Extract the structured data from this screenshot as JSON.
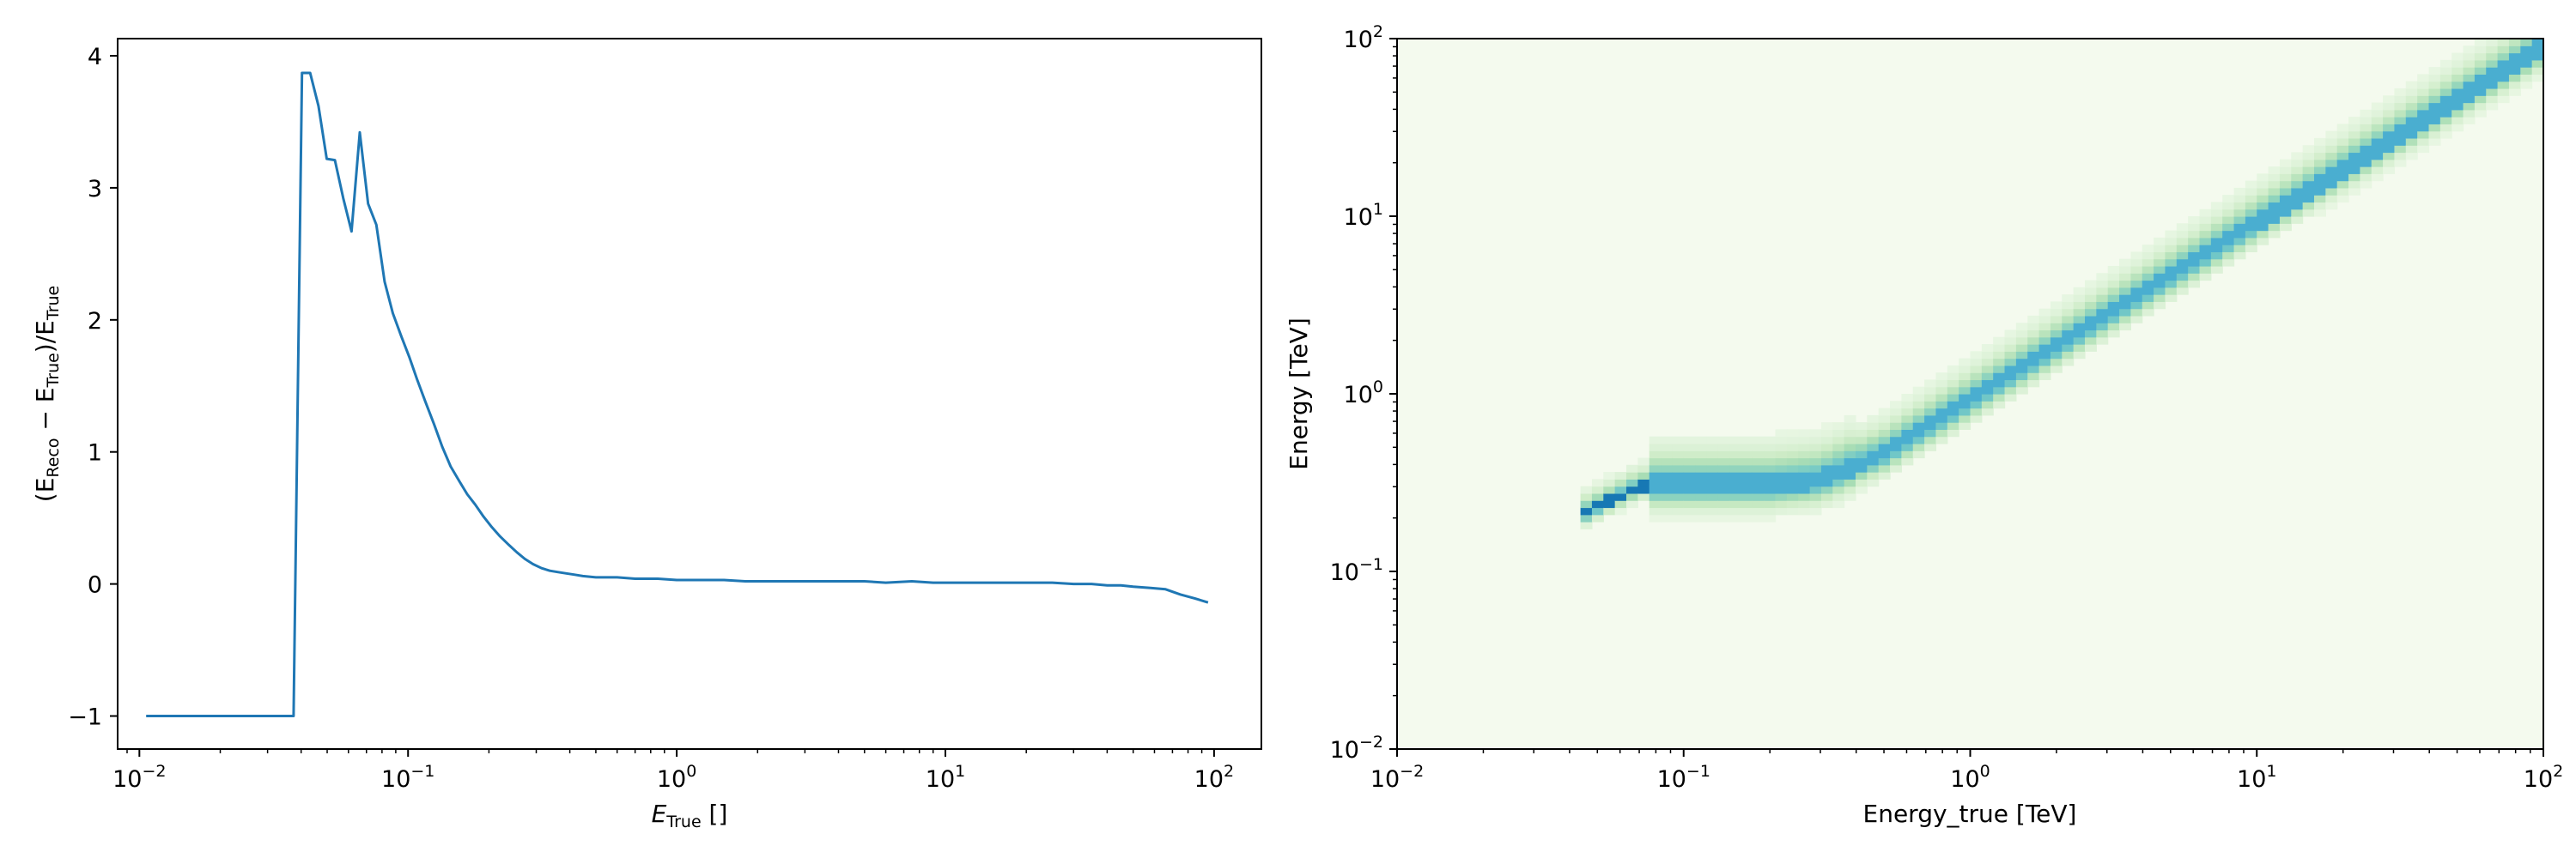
{
  "chart_data": [
    {
      "type": "line",
      "xscale": "log",
      "xlim": [
        0.0083,
        150
      ],
      "ylim": [
        -1.25,
        4.13
      ],
      "xticks": [
        0.01,
        0.1,
        1,
        10,
        100
      ],
      "xtick_labels": [
        {
          "base": "10",
          "exp": "−2"
        },
        {
          "base": "10",
          "exp": "−1"
        },
        {
          "base": "10",
          "exp": "0"
        },
        {
          "base": "10",
          "exp": "1"
        },
        {
          "base": "10",
          "exp": "2"
        }
      ],
      "yticks": [
        -1,
        0,
        1,
        2,
        3,
        4
      ],
      "ytick_labels": [
        "−1",
        "0",
        "1",
        "2",
        "3",
        "4"
      ],
      "xlabel": {
        "main": "E",
        "sub": "True",
        "suffix": " []"
      },
      "ylabel": {
        "p1": "(E",
        "s1": "Reco",
        "p2": " − E",
        "s2": "True",
        "p3": ")/E",
        "s3": "True"
      },
      "line_color": "#1f77b4",
      "grid": false,
      "series": [
        {
          "x": [
            0.0106,
            0.0125,
            0.015,
            0.02,
            0.025,
            0.03,
            0.0355,
            0.0375,
            0.0403,
            0.0432,
            0.0464,
            0.0498,
            0.0534,
            0.0574,
            0.0616,
            0.0661,
            0.071,
            0.0762,
            0.0818,
            0.0878,
            0.0942,
            0.101,
            0.108,
            0.116,
            0.125,
            0.134,
            0.144,
            0.155,
            0.166,
            0.178,
            0.191,
            0.205,
            0.22,
            0.236,
            0.254,
            0.272,
            0.292,
            0.314,
            0.337,
            0.362,
            0.388,
            0.417,
            0.447,
            0.5,
            0.6,
            0.7,
            0.85,
            1.0,
            1.2,
            1.5,
            1.8,
            2.2,
            2.7,
            3.2,
            4.0,
            5.0,
            6.0,
            7.5,
            9.0,
            11,
            14,
            17,
            20,
            25,
            30,
            35,
            40,
            45,
            50,
            58,
            66,
            75,
            85,
            95
          ],
          "y": [
            -1.0,
            -1.0,
            -1.0,
            -1.0,
            -1.0,
            -1.0,
            -1.0,
            -1.0,
            3.87,
            3.87,
            3.62,
            3.22,
            3.21,
            2.92,
            2.67,
            3.42,
            2.88,
            2.72,
            2.29,
            2.05,
            1.88,
            1.72,
            1.55,
            1.38,
            1.21,
            1.04,
            0.89,
            0.78,
            0.68,
            0.6,
            0.51,
            0.43,
            0.36,
            0.3,
            0.24,
            0.19,
            0.15,
            0.12,
            0.1,
            0.09,
            0.08,
            0.07,
            0.06,
            0.05,
            0.05,
            0.04,
            0.04,
            0.03,
            0.03,
            0.03,
            0.02,
            0.02,
            0.02,
            0.02,
            0.02,
            0.02,
            0.01,
            0.02,
            0.01,
            0.01,
            0.01,
            0.01,
            0.01,
            0.01,
            0.0,
            0.0,
            -0.01,
            -0.01,
            -0.02,
            -0.03,
            -0.04,
            -0.08,
            -0.11,
            -0.14
          ]
        }
      ]
    },
    {
      "type": "heatmap",
      "xscale": "log",
      "yscale": "log",
      "xlim": [
        0.01,
        100
      ],
      "ylim": [
        0.01,
        100
      ],
      "xticks": [
        0.01,
        0.1,
        1,
        10,
        100
      ],
      "yticks": [
        0.01,
        0.1,
        1,
        10,
        100
      ],
      "xtick_labels": [
        {
          "base": "10",
          "exp": "−2"
        },
        {
          "base": "10",
          "exp": "−1"
        },
        {
          "base": "10",
          "exp": "0"
        },
        {
          "base": "10",
          "exp": "1"
        },
        {
          "base": "10",
          "exp": "2"
        }
      ],
      "ytick_labels": [
        {
          "base": "10",
          "exp": "−2"
        },
        {
          "base": "10",
          "exp": "−1"
        },
        {
          "base": "10",
          "exp": "0"
        },
        {
          "base": "10",
          "exp": "1"
        },
        {
          "base": "10",
          "exp": "2"
        }
      ],
      "xlabel": "Energy_true [TeV]",
      "ylabel": "Energy [TeV]",
      "colormap": [
        "#f7fcf0",
        "#e0f3db",
        "#ccebc5",
        "#a8ddb5",
        "#7bccc4",
        "#4eb3d3",
        "#2b8cbe",
        "#0868ac",
        "#084081"
      ],
      "background_color": "#f4faee",
      "migration_ridge": [
        {
          "x": 0.045,
          "y": 0.21
        },
        {
          "x": 0.07,
          "y": 0.3
        },
        {
          "x": 0.1,
          "y": 0.3
        },
        {
          "x": 0.2,
          "y": 0.3
        },
        {
          "x": 0.3,
          "y": 0.32
        },
        {
          "x": 0.5,
          "y": 0.45
        },
        {
          "x": 1,
          "y": 0.9
        },
        {
          "x": 10,
          "y": 9
        },
        {
          "x": 100,
          "y": 88
        }
      ]
    }
  ]
}
